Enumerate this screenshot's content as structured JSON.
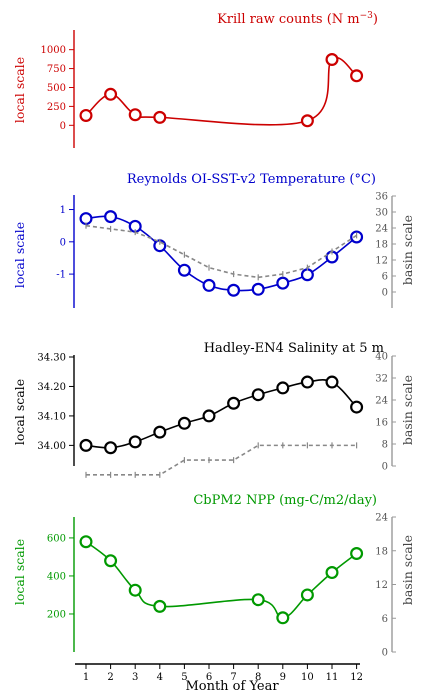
{
  "x_axis": {
    "label": "Month of Year",
    "ticks": [
      "1",
      "2",
      "3",
      "4",
      "5",
      "6",
      "7",
      "8",
      "9",
      "10",
      "11",
      "12"
    ]
  },
  "chart_data": [
    {
      "type": "line",
      "title_main": "Krill raw counts (N m",
      "title_sup": "−3",
      "title_end": ")",
      "color": "#cc0000",
      "ylabel": "local scale",
      "yticks": [
        0,
        250,
        500,
        750,
        1000
      ],
      "ylim": [
        -300,
        1260
      ],
      "x": [
        1,
        2,
        3,
        4,
        10,
        11,
        12
      ],
      "series": [
        {
          "values": [
            130,
            410,
            140,
            105,
            60,
            870,
            655
          ]
        }
      ]
    },
    {
      "type": "line",
      "title": "Reynolds OI-SST-v2 Temperature (°C)",
      "color": "#0000cc",
      "ylabel": "local scale",
      "ylabel_right": "basin scale",
      "yticks": [
        -1,
        0,
        1
      ],
      "ylim": [
        -2.05,
        1.45
      ],
      "yticks_right": [
        0,
        6,
        12,
        18,
        24,
        30,
        36
      ],
      "ylim_right": [
        -6,
        36
      ],
      "x": [
        1,
        2,
        3,
        4,
        5,
        6,
        7,
        8,
        9,
        10,
        11,
        12
      ],
      "series": [
        {
          "axis": "left",
          "values": [
            0.72,
            0.78,
            0.48,
            -0.12,
            -0.88,
            -1.35,
            -1.5,
            -1.47,
            -1.28,
            -1.02,
            -0.47,
            0.15
          ]
        },
        {
          "axis": "right",
          "style": "dashed",
          "color": "#888888",
          "values": [
            0.5,
            0.4,
            0.3,
            0.0,
            -0.4,
            -0.8,
            -1.0,
            -1.1,
            -1.0,
            -0.8,
            -0.3,
            0.2
          ]
        }
      ]
    },
    {
      "type": "line",
      "title": "Hadley-EN4 Salinity at 5 m",
      "color": "#000000",
      "ylabel": "local scale",
      "ylabel_right": "basin scale",
      "yticks": [
        "34.00",
        "34.10",
        "34.20",
        "34.30"
      ],
      "ylim": [
        33.93,
        34.3
      ],
      "yticks_right": [
        0,
        8,
        16,
        24,
        32,
        40
      ],
      "ylim_right": [
        0,
        40
      ],
      "x": [
        1,
        2,
        3,
        4,
        5,
        6,
        7,
        8,
        9,
        10,
        11,
        12
      ],
      "series": [
        {
          "axis": "left",
          "values": [
            34.0,
            33.992,
            34.012,
            34.045,
            34.075,
            34.1,
            34.143,
            34.172,
            34.195,
            34.215,
            34.215,
            34.13
          ]
        },
        {
          "axis": "right",
          "style": "dashed",
          "color": "#888888",
          "values": [
            33.9,
            33.9,
            33.9,
            33.9,
            33.95,
            33.95,
            33.95,
            34.0,
            34.0,
            34.0,
            34.0,
            34.0
          ]
        }
      ]
    },
    {
      "type": "line",
      "title": "CbPM2 NPP (mg-C/m2/day)",
      "color": "#009900",
      "ylabel": "local scale",
      "ylabel_right": "basin scale",
      "yticks": [
        200,
        400,
        600
      ],
      "ylim": [
        0,
        710
      ],
      "yticks_right": [
        0,
        6,
        12,
        18,
        24
      ],
      "ylim_right": [
        0,
        24
      ],
      "x": [
        1,
        2,
        3,
        4,
        8,
        9,
        10,
        11,
        12
      ],
      "series": [
        {
          "axis": "left",
          "values": [
            580,
            480,
            325,
            240,
            275,
            180,
            300,
            418,
            518
          ]
        }
      ]
    }
  ]
}
